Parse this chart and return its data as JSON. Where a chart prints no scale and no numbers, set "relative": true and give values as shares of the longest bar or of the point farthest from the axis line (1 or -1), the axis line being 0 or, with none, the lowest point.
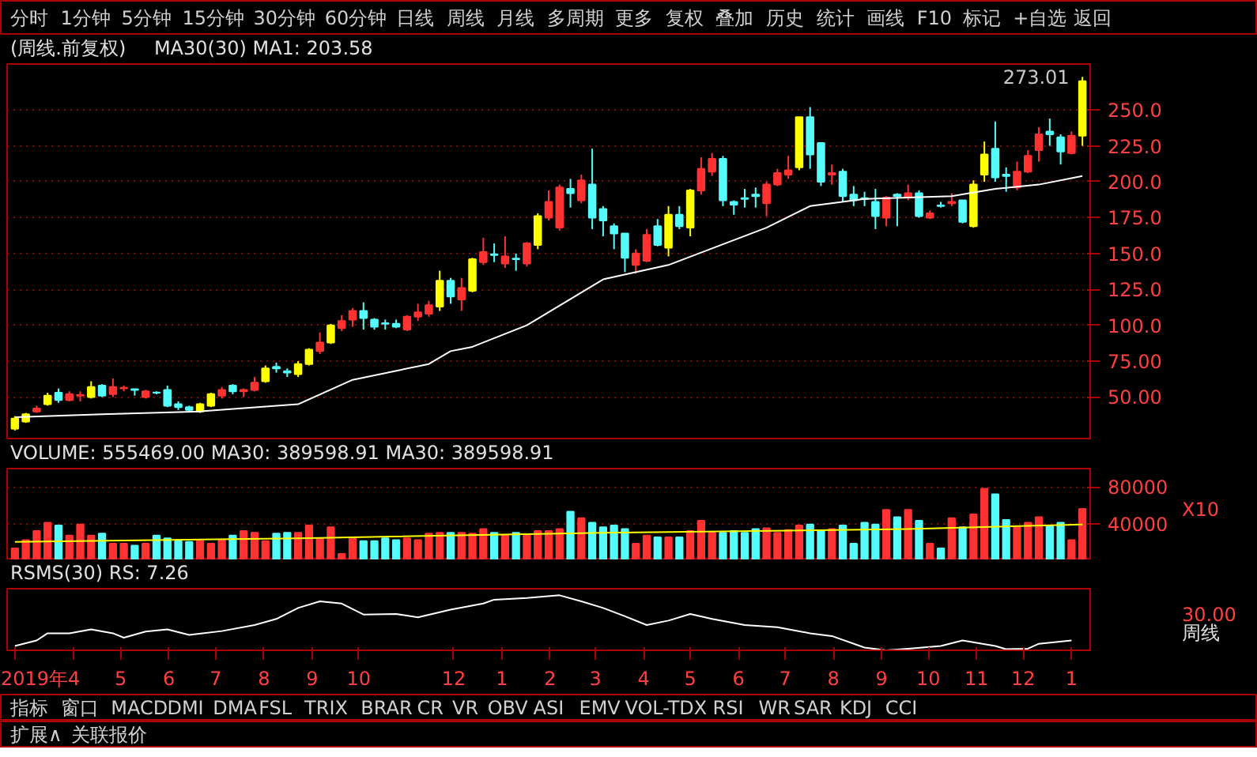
{
  "chart_data": [
    {
      "type": "other",
      "annotations": [
        "分时",
        "1分钟",
        "5分钟",
        "15分钟",
        "30分钟",
        "60分钟",
        "日线",
        "周线",
        "月线",
        "多周期",
        "更多",
        "复权",
        "叠加",
        "历史",
        "统计",
        "画线",
        "F10",
        "标记",
        "+自选",
        "返回"
      ]
    },
    {
      "type": "candlestick",
      "title": "(周线.前复权)",
      "subtitle": "MA30(30)  MA1: 203.58",
      "tick_labels": "y",
      "grid": "y",
      "xlim": [
        "2019-02-17",
        "2021-01-13"
      ],
      "ylim": [
        20,
        282
      ],
      "yticks": [
        {
          "value": 50,
          "label": "50.00"
        },
        {
          "value": 75,
          "label": "75.00"
        },
        {
          "value": 100,
          "label": "100.0"
        },
        {
          "value": 125,
          "label": "125.0"
        },
        {
          "value": 150,
          "label": "150.0"
        },
        {
          "value": 175,
          "label": "175.0"
        },
        {
          "value": 200,
          "label": "200.0"
        },
        {
          "value": 225,
          "label": "225.0"
        },
        {
          "value": 250,
          "label": "250.0"
        }
      ],
      "x": [
        "2019-02-22",
        "2019-03-01",
        "2019-03-08",
        "2019-03-15",
        "2019-03-22",
        "2019-03-29",
        "2019-04-05",
        "2019-04-12",
        "2019-04-19",
        "2019-04-26",
        "2019-05-03",
        "2019-05-10",
        "2019-05-17",
        "2019-05-24",
        "2019-05-31",
        "2019-06-07",
        "2019-06-14",
        "2019-06-21",
        "2019-06-28",
        "2019-07-05",
        "2019-07-12",
        "2019-07-19",
        "2019-07-26",
        "2019-08-02",
        "2019-08-09",
        "2019-08-16",
        "2019-08-23",
        "2019-08-30",
        "2019-09-06",
        "2019-09-13",
        "2019-09-20",
        "2019-09-27",
        "2019-10-04",
        "2019-10-11",
        "2019-10-18",
        "2019-10-25",
        "2019-11-01",
        "2019-11-08",
        "2019-11-15",
        "2019-11-22",
        "2019-11-29",
        "2019-12-06",
        "2019-12-13",
        "2019-12-20",
        "2019-12-27",
        "2020-01-03",
        "2020-01-10",
        "2020-01-17",
        "2020-01-24",
        "2020-01-31",
        "2020-02-07",
        "2020-02-14",
        "2020-02-21",
        "2020-02-28",
        "2020-03-06",
        "2020-03-13",
        "2020-03-20",
        "2020-03-27",
        "2020-04-03",
        "2020-04-10",
        "2020-04-17",
        "2020-04-24",
        "2020-05-01",
        "2020-05-08",
        "2020-05-15",
        "2020-05-22",
        "2020-05-29",
        "2020-06-05",
        "2020-06-12",
        "2020-06-19",
        "2020-06-26",
        "2020-07-03",
        "2020-07-10",
        "2020-07-17",
        "2020-07-24",
        "2020-07-31",
        "2020-08-07",
        "2020-08-14",
        "2020-08-21",
        "2020-08-28",
        "2020-09-04",
        "2020-09-11",
        "2020-09-18",
        "2020-09-25",
        "2020-10-02",
        "2020-10-09",
        "2020-10-16",
        "2020-10-23",
        "2020-10-30",
        "2020-11-06",
        "2020-11-13",
        "2020-11-20",
        "2020-11-27",
        "2020-12-04",
        "2020-12-11",
        "2020-12-18",
        "2020-12-25",
        "2021-01-01",
        "2021-01-08"
      ],
      "ohlc": [
        [
          28,
          36.7,
          26.7,
          35
        ],
        [
          33,
          39,
          32,
          38
        ],
        [
          40,
          44,
          39,
          42
        ],
        [
          45,
          53,
          44,
          51
        ],
        [
          53,
          56,
          46,
          48
        ],
        [
          48,
          54,
          47,
          52
        ],
        [
          51,
          54,
          47,
          51.5
        ],
        [
          50,
          61,
          49,
          57
        ],
        [
          58,
          59,
          50,
          51
        ],
        [
          52,
          63,
          50,
          57
        ],
        [
          56,
          58,
          54,
          56.5
        ],
        [
          55.5,
          55.5,
          51,
          55
        ],
        [
          50,
          55,
          49,
          54
        ],
        [
          53.2,
          54,
          52,
          53
        ],
        [
          55,
          58,
          43,
          44
        ],
        [
          45,
          47,
          41,
          43
        ],
        [
          43,
          44,
          40,
          41
        ],
        [
          40,
          46,
          39,
          45
        ],
        [
          44,
          53,
          43,
          52
        ],
        [
          51,
          57,
          49,
          55
        ],
        [
          58,
          59,
          52,
          54
        ],
        [
          54,
          56,
          50,
          55
        ],
        [
          55,
          64,
          54,
          60
        ],
        [
          61,
          72,
          60,
          70
        ],
        [
          71,
          74,
          67,
          70
        ],
        [
          68,
          70,
          64,
          67
        ],
        [
          66,
          75,
          64,
          73
        ],
        [
          73,
          84,
          72,
          83
        ],
        [
          82,
          95,
          80,
          88
        ],
        [
          88,
          101,
          87,
          100
        ],
        [
          98,
          107,
          96,
          103
        ],
        [
          104,
          112,
          99,
          110
        ],
        [
          110,
          116,
          97,
          105
        ],
        [
          104,
          105,
          97,
          99
        ],
        [
          101.5,
          104,
          97,
          101
        ],
        [
          101,
          104,
          98,
          99
        ],
        [
          97,
          107,
          96,
          106
        ],
        [
          106,
          115,
          103,
          109
        ],
        [
          108,
          117,
          106,
          114
        ],
        [
          113,
          138,
          110,
          131
        ],
        [
          131,
          133,
          115,
          120
        ],
        [
          118,
          133,
          110,
          126
        ],
        [
          124,
          147,
          123,
          146
        ],
        [
          144,
          161,
          142,
          151
        ],
        [
          149.5,
          157,
          144,
          149
        ],
        [
          143,
          162,
          140,
          148
        ],
        [
          146.5,
          150,
          138,
          146
        ],
        [
          143,
          158,
          141,
          157
        ],
        [
          156,
          178,
          153,
          176
        ],
        [
          175,
          194,
          173,
          186
        ],
        [
          168,
          198,
          166,
          196
        ],
        [
          195,
          202,
          182,
          192
        ],
        [
          187,
          205,
          185,
          201
        ],
        [
          198,
          223,
          167,
          175
        ],
        [
          181,
          183,
          162,
          173
        ],
        [
          169,
          171,
          153,
          164
        ],
        [
          164,
          164,
          137,
          147
        ],
        [
          142,
          153,
          136,
          150
        ],
        [
          145,
          167,
          144,
          163
        ],
        [
          169,
          174,
          155,
          156
        ],
        [
          154,
          183,
          148,
          177
        ],
        [
          177,
          183,
          167,
          169
        ],
        [
          168,
          195,
          162,
          194
        ],
        [
          194,
          217,
          191,
          209
        ],
        [
          207,
          220,
          204,
          216
        ],
        [
          216,
          218,
          183,
          187
        ],
        [
          186,
          187,
          177,
          184
        ],
        [
          188.5,
          195,
          182,
          188
        ],
        [
          191,
          196,
          182,
          190
        ],
        [
          185,
          200,
          176,
          198
        ],
        [
          198,
          209,
          197,
          206
        ],
        [
          205,
          218,
          202,
          208
        ],
        [
          210,
          245,
          208,
          245
        ],
        [
          245,
          252,
          209,
          219
        ],
        [
          227,
          227,
          197,
          200
        ],
        [
          205,
          212,
          198,
          206
        ],
        [
          207,
          209,
          186,
          190
        ],
        [
          191,
          197,
          183,
          187
        ],
        [
          188.5,
          193,
          183,
          188
        ],
        [
          186,
          195,
          167,
          176
        ],
        [
          175,
          190,
          169,
          189
        ],
        [
          191,
          192,
          169,
          190
        ],
        [
          189,
          198,
          187,
          192
        ],
        [
          192,
          194,
          175,
          176
        ],
        [
          175,
          180,
          174,
          178
        ],
        [
          183.5,
          186,
          182,
          183
        ],
        [
          185,
          192,
          183,
          186
        ],
        [
          187,
          187,
          171,
          172
        ],
        [
          169,
          201,
          168,
          198
        ],
        [
          205,
          228,
          200,
          219
        ],
        [
          223,
          242,
          200,
          203
        ],
        [
          205,
          210,
          193,
          204
        ],
        [
          196,
          214,
          194,
          207
        ],
        [
          207,
          222,
          206,
          218
        ],
        [
          222,
          238,
          214,
          233
        ],
        [
          235,
          244,
          225,
          233
        ],
        [
          231,
          233,
          212,
          221
        ],
        [
          220,
          235,
          219,
          232
        ],
        [
          232,
          273.01,
          225,
          270
        ]
      ],
      "colors": [
        "#ffff00",
        "#ffff00",
        "#ff3232",
        "#ffff00",
        "#54fcfc",
        "#ff3232",
        "#ff3232",
        "#ffff00",
        "#54fcfc",
        "#ff3232",
        "#ff3232",
        "#54fcfc",
        "#ff3232",
        "#54fcfc",
        "#54fcfc",
        "#54fcfc",
        "#54fcfc",
        "#ffff00",
        "#ffff00",
        "#ff3232",
        "#54fcfc",
        "#ff3232",
        "#ff3232",
        "#ffff00",
        "#54fcfc",
        "#54fcfc",
        "#ffff00",
        "#ffff00",
        "#ff3232",
        "#ffff00",
        "#ff3232",
        "#ff3232",
        "#54fcfc",
        "#54fcfc",
        "#54fcfc",
        "#54fcfc",
        "#ff3232",
        "#ff3232",
        "#ff3232",
        "#ffff00",
        "#54fcfc",
        "#ff3232",
        "#ffff00",
        "#ff3232",
        "#54fcfc",
        "#ff3232",
        "#54fcfc",
        "#ff3232",
        "#ffff00",
        "#ff3232",
        "#ff3232",
        "#54fcfc",
        "#ff3232",
        "#54fcfc",
        "#54fcfc",
        "#54fcfc",
        "#54fcfc",
        "#ff3232",
        "#ff3232",
        "#54fcfc",
        "#ffff00",
        "#54fcfc",
        "#ffff00",
        "#ff3232",
        "#ff3232",
        "#54fcfc",
        "#54fcfc",
        "#54fcfc",
        "#54fcfc",
        "#ff3232",
        "#ff3232",
        "#ff3232",
        "#ffff00",
        "#54fcfc",
        "#54fcfc",
        "#ff3232",
        "#54fcfc",
        "#54fcfc",
        "#54fcfc",
        "#54fcfc",
        "#ff3232",
        "#54fcfc",
        "#ff3232",
        "#54fcfc",
        "#ff3232",
        "#54fcfc",
        "#ff3232",
        "#54fcfc",
        "#ffff00",
        "#ffff00",
        "#54fcfc",
        "#54fcfc",
        "#ff3232",
        "#ff3232",
        "#ff3232",
        "#54fcfc",
        "#54fcfc",
        "#ff3232",
        "#ffff00"
      ],
      "series": [
        {
          "type": "line",
          "color": "#ffffff",
          "x": [
            "2019-02-22",
            "2019-04-19",
            "2019-06-21",
            "2019-08-23",
            "2019-09-27",
            "2019-11-15",
            "2019-11-29",
            "2019-12-13",
            "2020-01-17",
            "2020-03-06",
            "2020-04-17",
            "2020-06-19",
            "2020-07-17",
            "2020-08-21",
            "2020-10-16",
            "2020-11-13",
            "2020-12-11",
            "2021-01-08"
          ],
          "values": [
            36,
            38,
            40,
            45,
            62,
            73,
            82,
            85,
            100,
            132,
            142,
            168,
            183,
            188,
            190,
            195,
            198,
            204
          ]
        }
      ],
      "annotations": [
        {
          "text": "273.01",
          "x": "2021-01-08",
          "y": 273.01
        }
      ]
    },
    {
      "type": "bar",
      "title": "VOLUME: 555469.00  MA30: 389598.91  MA30: 389598.91",
      "tick_labels": "y",
      "grid": "y",
      "xlim": [
        "2019-02-17",
        "2021-01-13"
      ],
      "ylim": [
        0,
        100000
      ],
      "yticks": [
        40000,
        80000
      ],
      "x": [
        "2019-02-22",
        "2019-03-01",
        "2019-03-08",
        "2019-03-15",
        "2019-03-22",
        "2019-03-29",
        "2019-04-05",
        "2019-04-12",
        "2019-04-19",
        "2019-04-26",
        "2019-05-03",
        "2019-05-10",
        "2019-05-17",
        "2019-05-24",
        "2019-05-31",
        "2019-06-07",
        "2019-06-14",
        "2019-06-21",
        "2019-06-28",
        "2019-07-05",
        "2019-07-12",
        "2019-07-19",
        "2019-07-26",
        "2019-08-02",
        "2019-08-09",
        "2019-08-16",
        "2019-08-23",
        "2019-08-30",
        "2019-09-06",
        "2019-09-13",
        "2019-09-20",
        "2019-09-27",
        "2019-10-04",
        "2019-10-11",
        "2019-10-18",
        "2019-10-25",
        "2019-11-01",
        "2019-11-08",
        "2019-11-15",
        "2019-11-22",
        "2019-11-29",
        "2019-12-06",
        "2019-12-13",
        "2019-12-20",
        "2019-12-27",
        "2020-01-03",
        "2020-01-10",
        "2020-01-17",
        "2020-01-24",
        "2020-01-31",
        "2020-02-07",
        "2020-02-14",
        "2020-02-21",
        "2020-02-28",
        "2020-03-06",
        "2020-03-13",
        "2020-03-20",
        "2020-03-27",
        "2020-04-03",
        "2020-04-10",
        "2020-04-17",
        "2020-04-24",
        "2020-05-01",
        "2020-05-08",
        "2020-05-15",
        "2020-05-22",
        "2020-05-29",
        "2020-06-05",
        "2020-06-12",
        "2020-06-19",
        "2020-06-26",
        "2020-07-03",
        "2020-07-10",
        "2020-07-17",
        "2020-07-24",
        "2020-07-31",
        "2020-08-07",
        "2020-08-14",
        "2020-08-21",
        "2020-08-28",
        "2020-09-04",
        "2020-09-11",
        "2020-09-18",
        "2020-09-25",
        "2020-10-02",
        "2020-10-09",
        "2020-10-16",
        "2020-10-23",
        "2020-10-30",
        "2020-11-06",
        "2020-11-13",
        "2020-11-20",
        "2020-11-27",
        "2020-12-04",
        "2020-12-11",
        "2020-12-18",
        "2020-12-25",
        "2021-01-01",
        "2021-01-08"
      ],
      "values": [
        13000,
        22000,
        32000,
        41000,
        38000,
        27000,
        39000,
        27000,
        29000,
        18000,
        18000,
        16000,
        18000,
        27000,
        24000,
        21000,
        20000,
        21000,
        18000,
        22000,
        27000,
        32000,
        30000,
        21000,
        29000,
        30000,
        30000,
        38000,
        24000,
        36000,
        7000,
        24000,
        21000,
        21000,
        24000,
        22000,
        24000,
        22000,
        29000,
        30000,
        30000,
        30000,
        29000,
        34000,
        30000,
        27000,
        30000,
        28000,
        32000,
        32000,
        34000,
        53000,
        46000,
        41000,
        36000,
        38000,
        34000,
        18000,
        27000,
        25000,
        25000,
        25000,
        32000,
        43000,
        30000,
        30000,
        32000,
        30000,
        34000,
        35000,
        30000,
        33000,
        38000,
        39000,
        32000,
        34000,
        38000,
        18000,
        41000,
        39000,
        55000,
        47000,
        55000,
        43000,
        18000,
        13000,
        46000,
        36000,
        50000,
        78000,
        72000,
        44000,
        36000,
        41000,
        47000,
        38000,
        41000,
        22000,
        56000
      ],
      "colors": [
        "#ff3232",
        "#ff3232",
        "#ff3232",
        "#ff3232",
        "#54fcfc",
        "#ff3232",
        "#ff3232",
        "#ff3232",
        "#54fcfc",
        "#ff3232",
        "#ff3232",
        "#54fcfc",
        "#ff3232",
        "#54fcfc",
        "#54fcfc",
        "#54fcfc",
        "#54fcfc",
        "#ff3232",
        "#ff3232",
        "#ff3232",
        "#54fcfc",
        "#ff3232",
        "#ff3232",
        "#ff3232",
        "#54fcfc",
        "#54fcfc",
        "#ff3232",
        "#ff3232",
        "#ff3232",
        "#ff3232",
        "#ff3232",
        "#ff3232",
        "#54fcfc",
        "#54fcfc",
        "#54fcfc",
        "#54fcfc",
        "#ff3232",
        "#ff3232",
        "#ff3232",
        "#ff3232",
        "#54fcfc",
        "#ff3232",
        "#ff3232",
        "#ff3232",
        "#54fcfc",
        "#ff3232",
        "#54fcfc",
        "#ff3232",
        "#ff3232",
        "#ff3232",
        "#ff3232",
        "#54fcfc",
        "#ff3232",
        "#54fcfc",
        "#54fcfc",
        "#54fcfc",
        "#54fcfc",
        "#ff3232",
        "#ff3232",
        "#54fcfc",
        "#ff3232",
        "#54fcfc",
        "#ff3232",
        "#ff3232",
        "#ff3232",
        "#54fcfc",
        "#54fcfc",
        "#54fcfc",
        "#54fcfc",
        "#ff3232",
        "#ff3232",
        "#ff3232",
        "#ff3232",
        "#54fcfc",
        "#54fcfc",
        "#ff3232",
        "#54fcfc",
        "#54fcfc",
        "#54fcfc",
        "#54fcfc",
        "#ff3232",
        "#54fcfc",
        "#ff3232",
        "#54fcfc",
        "#ff3232",
        "#54fcfc",
        "#ff3232",
        "#54fcfc",
        "#ff3232",
        "#ff3232",
        "#54fcfc",
        "#54fcfc",
        "#ff3232",
        "#ff3232",
        "#ff3232",
        "#54fcfc",
        "#54fcfc",
        "#ff3232",
        "#ff3232"
      ],
      "series": [
        {
          "type": "line",
          "color": "#ffff00",
          "x": [
            "2019-02-22",
            "2019-08-23",
            "2020-03-06",
            "2020-06-12",
            "2020-09-18",
            "2021-01-08"
          ],
          "values": [
            20000,
            24000,
            30000,
            32000,
            34000,
            39000
          ]
        }
      ],
      "annotations": [
        "X10"
      ]
    },
    {
      "type": "line",
      "title": "RSMS(30)  RS: 7.26",
      "relative": true,
      "xlim": [
        "2019-02-17",
        "2021-01-13"
      ],
      "tick_labels": "x",
      "xticks": [
        {
          "value": "2019-02-22",
          "label": "2019年"
        },
        {
          "value": "2019-04",
          "label": "4"
        },
        {
          "value": "2019-05",
          "label": "5"
        },
        {
          "value": "2019-06",
          "label": "6"
        },
        {
          "value": "2019-07",
          "label": "7"
        },
        {
          "value": "2019-08",
          "label": "8"
        },
        {
          "value": "2019-09",
          "label": "9"
        },
        {
          "value": "2019-10",
          "label": "10"
        },
        {
          "value": "2019-12",
          "label": "12"
        },
        {
          "value": "2020-01",
          "label": "1"
        },
        {
          "value": "2020-02",
          "label": "2"
        },
        {
          "value": "2020-03",
          "label": "3"
        },
        {
          "value": "2020-04",
          "label": "4"
        },
        {
          "value": "2020-05",
          "label": "5"
        },
        {
          "value": "2020-06",
          "label": "6"
        },
        {
          "value": "2020-07",
          "label": "7"
        },
        {
          "value": "2020-08",
          "label": "8"
        },
        {
          "value": "2020-09",
          "label": "9"
        },
        {
          "value": "2020-10",
          "label": "10"
        },
        {
          "value": "2020-11",
          "label": "11"
        },
        {
          "value": "2020-12",
          "label": "12"
        },
        {
          "value": "2021-01",
          "label": "1"
        }
      ],
      "series": [
        {
          "color": "#ffffff",
          "x": [
            "2019-02-22",
            "2019-03-08",
            "2019-03-15",
            "2019-03-29",
            "2019-04-12",
            "2019-04-26",
            "2019-05-03",
            "2019-05-17",
            "2019-05-31",
            "2019-06-14",
            "2019-07-05",
            "2019-07-26",
            "2019-08-09",
            "2019-08-23",
            "2019-09-06",
            "2019-09-20",
            "2019-10-04",
            "2019-10-25",
            "2019-11-08",
            "2019-11-29",
            "2019-12-20",
            "2019-12-27",
            "2020-01-17",
            "2020-02-07",
            "2020-02-21",
            "2020-03-06",
            "2020-03-20",
            "2020-04-03",
            "2020-04-17",
            "2020-05-01",
            "2020-05-15",
            "2020-06-05",
            "2020-06-26",
            "2020-07-17",
            "2020-07-31",
            "2020-08-21",
            "2020-09-04",
            "2020-09-18",
            "2020-10-09",
            "2020-10-23",
            "2020-11-13",
            "2020-11-20",
            "2020-12-04",
            "2020-12-11",
            "2021-01-01"
          ],
          "values": [
            0.08,
            0.18,
            0.31,
            0.31,
            0.38,
            0.31,
            0.23,
            0.34,
            0.38,
            0.28,
            0.35,
            0.46,
            0.57,
            0.77,
            0.89,
            0.85,
            0.65,
            0.66,
            0.6,
            0.74,
            0.85,
            0.92,
            0.95,
            1.0,
            0.89,
            0.77,
            0.62,
            0.46,
            0.54,
            0.66,
            0.57,
            0.46,
            0.42,
            0.31,
            0.26,
            0.05,
            0,
            0.03,
            0.08,
            0.18,
            0.08,
            0.02,
            0.03,
            0.12,
            0.18
          ]
        }
      ],
      "annotations": [
        "30.00",
        "周线"
      ]
    },
    {
      "type": "other",
      "annotations": [
        "指标",
        "窗口",
        "MACD",
        "DMI",
        "DMA",
        "FSL",
        "TRIX",
        "BRAR",
        "CR",
        "VR",
        "OBV",
        "ASI",
        "EMV",
        "VOL-TDX",
        "RSI",
        "WR",
        "SAR",
        "KDJ",
        "CCI"
      ]
    },
    {
      "type": "other",
      "annotations": [
        "扩展∧",
        "关联报价"
      ]
    }
  ]
}
